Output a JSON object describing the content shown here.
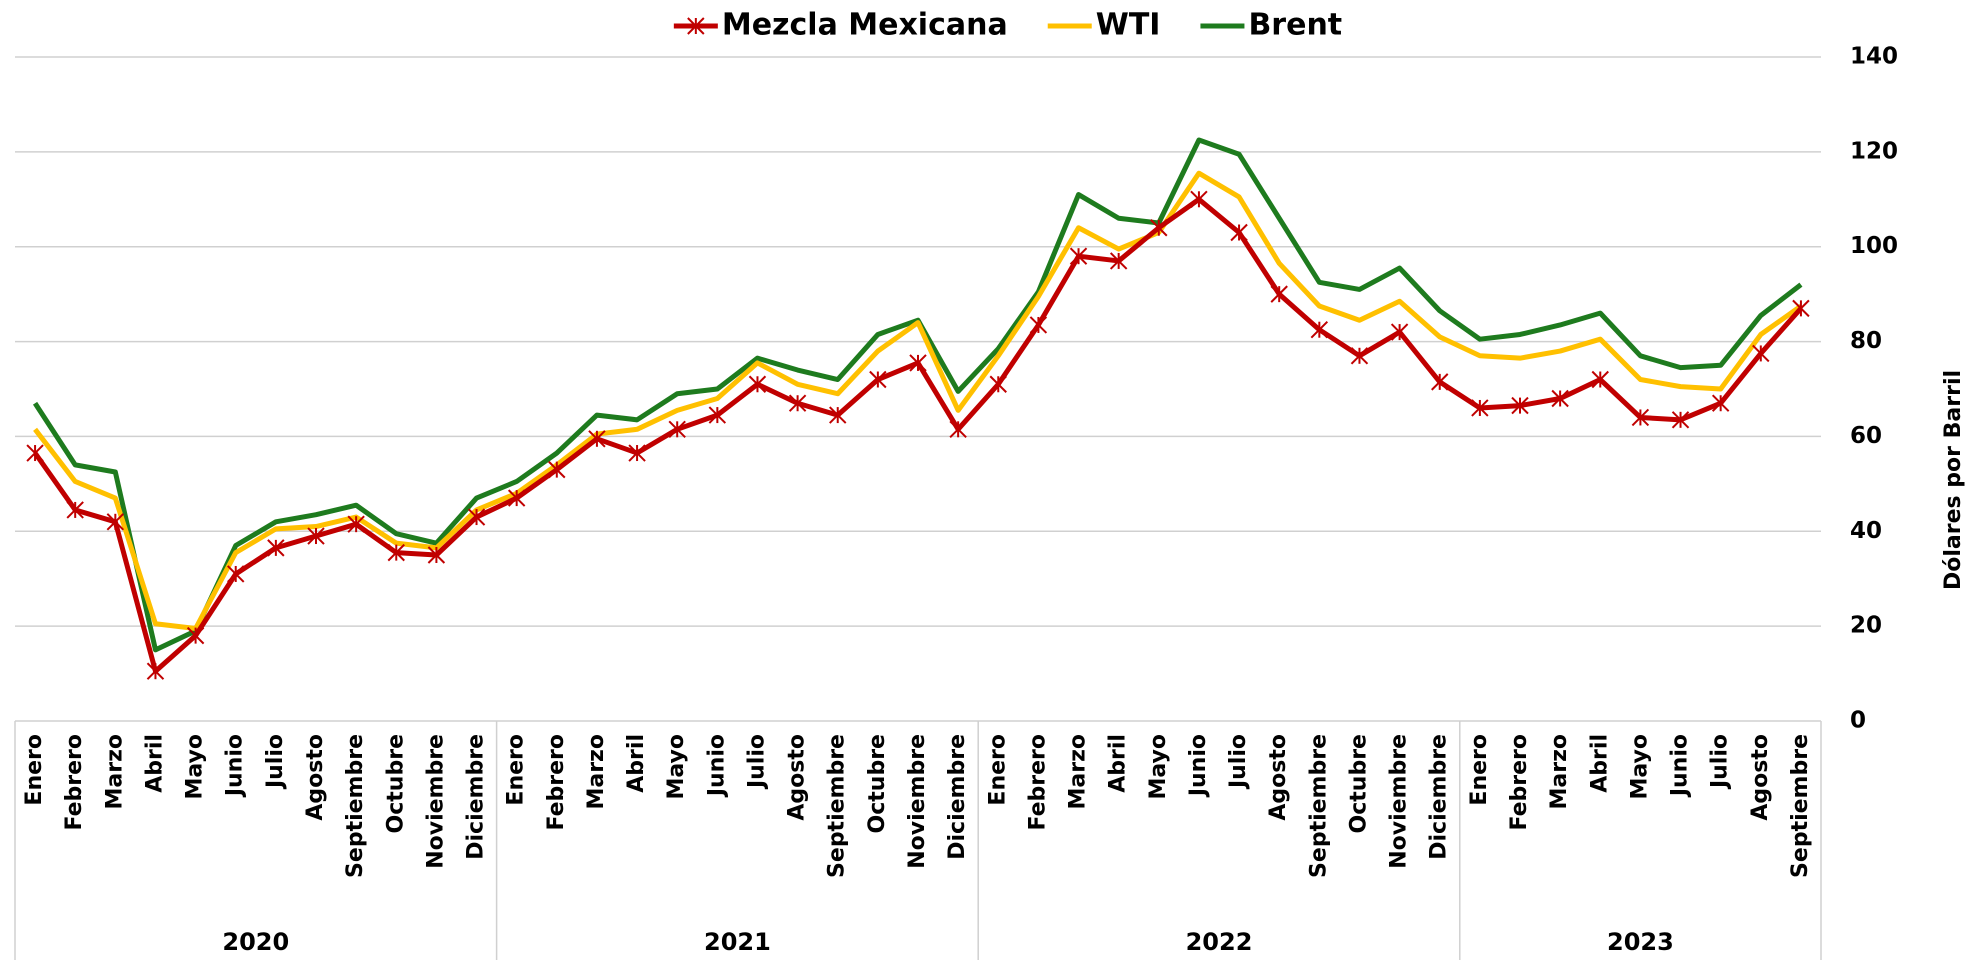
{
  "chart_data": {
    "type": "line",
    "categories": [
      "Enero",
      "Febrero",
      "Marzo",
      "Abril",
      "Mayo",
      "Junio",
      "Julio",
      "Agosto",
      "Septiembre",
      "Octubre",
      "Noviembre",
      "Diciembre",
      "Enero",
      "Febrero",
      "Marzo",
      "Abril",
      "Mayo",
      "Junio",
      "Julio",
      "Agosto",
      "Septiembre",
      "Octubre",
      "Noviembre",
      "Diciembre",
      "Enero",
      "Febrero",
      "Marzo",
      "Abril",
      "Mayo",
      "Junio",
      "Julio",
      "Agosto",
      "Septiembre",
      "Octubre",
      "Noviembre",
      "Diciembre",
      "Enero",
      "Febrero",
      "Marzo",
      "Abril",
      "Mayo",
      "Junio",
      "Julio",
      "Agosto",
      "Septiembre"
    ],
    "years": [
      "2020",
      "2021",
      "2022",
      "2023"
    ],
    "y_axis_label": "Dólares por Barril",
    "ylim": [
      0,
      140
    ],
    "yticks": [
      0,
      20,
      40,
      60,
      80,
      100,
      120,
      140
    ],
    "grid": true,
    "legend": "top",
    "series": [
      {
        "name": "Mezcla Mexicana",
        "color": "#c00000",
        "marker": "asterisk",
        "values": [
          56.5,
          44.5,
          42,
          10.5,
          18,
          31,
          36.5,
          39,
          41.5,
          35.5,
          35,
          43,
          47,
          53,
          59.5,
          56.5,
          61.5,
          64.5,
          71,
          67,
          64.5,
          72,
          75.5,
          61.5,
          71,
          83.5,
          98,
          97,
          104,
          110,
          103,
          90,
          82.5,
          77,
          82,
          71.5,
          66,
          66.5,
          68,
          72,
          64,
          63.5,
          67,
          77.5,
          87
        ]
      },
      {
        "name": "WTI",
        "color": "#ffc000",
        "values": [
          61.5,
          50.5,
          47,
          20.5,
          19.5,
          35.5,
          40.5,
          41,
          43,
          37.5,
          36.5,
          44.5,
          48,
          54,
          60.5,
          61.5,
          65.5,
          68,
          75.5,
          71,
          69,
          78,
          84,
          65.5,
          77,
          89.5,
          104,
          99.5,
          103,
          115.5,
          110.5,
          96.5,
          87.5,
          84.5,
          88.5,
          81,
          77,
          76.5,
          78,
          80.5,
          72,
          70.5,
          70,
          81.5,
          87.5
        ]
      },
      {
        "name": "Brent",
        "color": "#1e7b1e",
        "values": [
          67,
          54,
          52.5,
          15,
          19,
          37,
          42,
          43.5,
          45.5,
          39.5,
          37.5,
          47,
          50.5,
          56.5,
          64.5,
          63.5,
          69,
          70,
          76.5,
          74,
          72,
          81.5,
          84.5,
          69.5,
          78.5,
          90.5,
          111,
          106,
          105,
          122.5,
          119.5,
          106,
          92.5,
          91,
          95.5,
          86.5,
          80.5,
          81.5,
          83.5,
          86,
          77,
          74.5,
          75,
          85.5,
          92
        ]
      }
    ]
  }
}
